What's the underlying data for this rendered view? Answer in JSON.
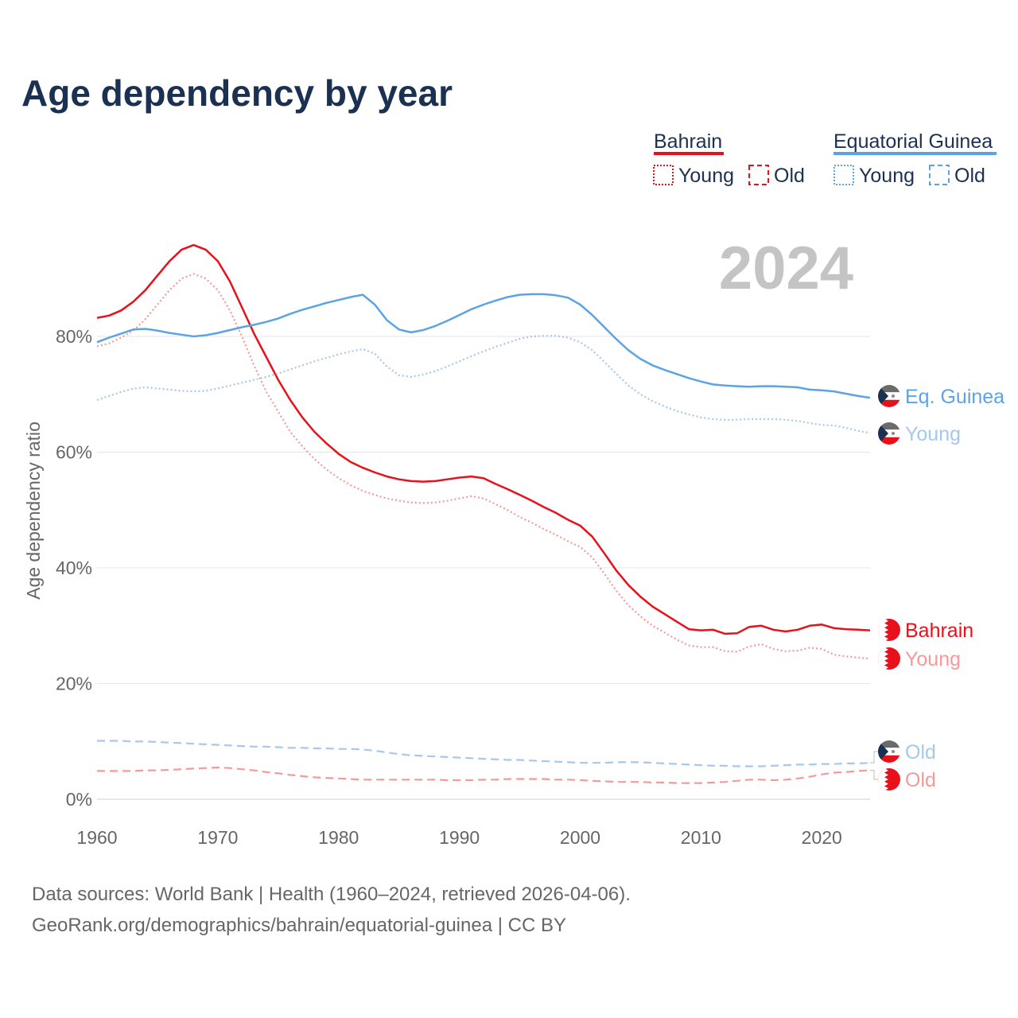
{
  "chart_data": {
    "type": "line",
    "title": "Age dependency by year",
    "xlabel": "",
    "ylabel": "Age dependency ratio",
    "xlim": [
      1960,
      2024
    ],
    "ylim": [
      0,
      100
    ],
    "y_ticks": [
      "0%",
      "20%",
      "40%",
      "60%",
      "80%"
    ],
    "y_tick_values": [
      0,
      20,
      40,
      60,
      80
    ],
    "x_ticks": [
      "1960",
      "1970",
      "1980",
      "1990",
      "2000",
      "2010",
      "2020"
    ],
    "x_tick_values": [
      1960,
      1970,
      1980,
      1990,
      2000,
      2010,
      2020
    ],
    "grid": true,
    "year_watermark": "2024",
    "x_start": 1960,
    "series": [
      {
        "name": "Bahrain",
        "label": "Bahrain",
        "style": "solid",
        "color": "#e8101a",
        "values": [
          83.2,
          83.6,
          84.5,
          86.0,
          88.0,
          90.5,
          93.0,
          95.0,
          95.8,
          95.0,
          93.0,
          89.5,
          85.0,
          80.5,
          76.5,
          72.5,
          69.0,
          66.0,
          63.5,
          61.5,
          59.7,
          58.3,
          57.3,
          56.5,
          55.8,
          55.3,
          55.0,
          54.9,
          55.0,
          55.3,
          55.6,
          55.8,
          55.5,
          54.5,
          53.6,
          52.6,
          51.6,
          50.5,
          49.5,
          48.3,
          47.3,
          45.4,
          42.5,
          39.5,
          37.0,
          35.0,
          33.3,
          32.0,
          30.7,
          29.4,
          29.2,
          29.3,
          28.6,
          28.7,
          29.8,
          30.0,
          29.3,
          29.0,
          29.3,
          30.0,
          30.2,
          29.6,
          29.4,
          29.3,
          29.2
        ]
      },
      {
        "name": "Bahrain Young",
        "label": "Young",
        "style": "dotted",
        "color": "#f59999",
        "values": [
          78.3,
          78.8,
          79.8,
          81.0,
          83.0,
          85.5,
          88.0,
          90.0,
          90.8,
          90.0,
          88.0,
          84.5,
          80.0,
          75.0,
          70.5,
          67.0,
          63.5,
          61.0,
          58.8,
          57.0,
          55.5,
          54.3,
          53.3,
          52.6,
          52.0,
          51.6,
          51.3,
          51.2,
          51.3,
          51.6,
          52.0,
          52.4,
          52.0,
          51.0,
          50.0,
          48.8,
          47.8,
          46.7,
          45.7,
          44.6,
          43.6,
          41.8,
          39.0,
          36.0,
          33.5,
          31.6,
          30.0,
          28.8,
          27.6,
          26.6,
          26.3,
          26.3,
          25.6,
          25.5,
          26.4,
          26.8,
          26.0,
          25.6,
          25.7,
          26.2,
          26.0,
          25.0,
          24.7,
          24.5,
          24.3
        ]
      },
      {
        "name": "Bahrain Old",
        "label": "Old",
        "style": "dashed",
        "color": "#f59999",
        "values": [
          4.9,
          4.9,
          4.9,
          4.9,
          5.0,
          5.0,
          5.1,
          5.2,
          5.3,
          5.4,
          5.5,
          5.4,
          5.2,
          5.0,
          4.7,
          4.5,
          4.2,
          4.0,
          3.8,
          3.7,
          3.6,
          3.5,
          3.4,
          3.4,
          3.4,
          3.4,
          3.4,
          3.4,
          3.4,
          3.3,
          3.3,
          3.3,
          3.4,
          3.4,
          3.5,
          3.5,
          3.5,
          3.5,
          3.4,
          3.4,
          3.3,
          3.2,
          3.1,
          3.0,
          3.0,
          3.0,
          2.9,
          2.9,
          2.8,
          2.8,
          2.8,
          2.9,
          3.0,
          3.2,
          3.4,
          3.4,
          3.3,
          3.4,
          3.6,
          3.9,
          4.3,
          4.6,
          4.7,
          4.9,
          5.0
        ]
      },
      {
        "name": "Equatorial Guinea",
        "label": "Eq. Guinea",
        "style": "solid",
        "color": "#5ba3e6",
        "values": [
          79.0,
          79.8,
          80.5,
          81.2,
          81.3,
          81.0,
          80.6,
          80.3,
          80.0,
          80.2,
          80.6,
          81.1,
          81.6,
          82.0,
          82.5,
          83.1,
          83.9,
          84.6,
          85.2,
          85.8,
          86.3,
          86.8,
          87.2,
          85.5,
          82.8,
          81.2,
          80.7,
          81.1,
          81.8,
          82.7,
          83.7,
          84.7,
          85.5,
          86.2,
          86.8,
          87.2,
          87.3,
          87.3,
          87.1,
          86.7,
          85.5,
          83.7,
          81.6,
          79.5,
          77.6,
          76.1,
          75.0,
          74.2,
          73.5,
          72.8,
          72.2,
          71.7,
          71.5,
          71.4,
          71.3,
          71.4,
          71.4,
          71.3,
          71.2,
          70.8,
          70.7,
          70.5,
          70.1,
          69.7,
          69.4
        ]
      },
      {
        "name": "Equatorial Guinea Young",
        "label": "Young",
        "style": "dotted",
        "color": "#a6c8ec",
        "values": [
          69.0,
          69.7,
          70.4,
          71.0,
          71.2,
          71.0,
          70.8,
          70.6,
          70.5,
          70.6,
          71.0,
          71.5,
          72.0,
          72.5,
          73.0,
          73.6,
          74.3,
          75.0,
          75.7,
          76.3,
          76.9,
          77.4,
          77.8,
          77.0,
          74.8,
          73.3,
          73.0,
          73.4,
          74.0,
          74.8,
          75.7,
          76.6,
          77.4,
          78.2,
          78.9,
          79.6,
          80.0,
          80.1,
          80.1,
          79.8,
          79.0,
          77.6,
          75.6,
          73.5,
          71.5,
          70.0,
          68.8,
          67.9,
          67.1,
          66.5,
          66.0,
          65.7,
          65.6,
          65.6,
          65.7,
          65.7,
          65.7,
          65.6,
          65.4,
          65.0,
          64.7,
          64.6,
          64.2,
          63.7,
          63.3
        ]
      },
      {
        "name": "Equatorial Guinea Old",
        "label": "Old",
        "style": "dashed",
        "color": "#a6c8ec",
        "values": [
          10.1,
          10.1,
          10.1,
          10.0,
          10.0,
          9.9,
          9.8,
          9.7,
          9.6,
          9.5,
          9.4,
          9.3,
          9.2,
          9.1,
          9.1,
          9.0,
          8.9,
          8.9,
          8.8,
          8.8,
          8.7,
          8.7,
          8.6,
          8.4,
          8.1,
          7.8,
          7.6,
          7.5,
          7.4,
          7.3,
          7.2,
          7.1,
          7.0,
          6.9,
          6.8,
          6.8,
          6.7,
          6.6,
          6.5,
          6.4,
          6.3,
          6.3,
          6.3,
          6.4,
          6.4,
          6.4,
          6.3,
          6.2,
          6.1,
          6.0,
          5.9,
          5.8,
          5.8,
          5.7,
          5.7,
          5.7,
          5.8,
          5.9,
          6.0,
          6.0,
          6.1,
          6.1,
          6.2,
          6.2,
          6.3
        ]
      }
    ],
    "legend": {
      "placement": "top-right",
      "groups": [
        {
          "country": "Bahrain",
          "color": "#e8101a",
          "items": [
            "Young",
            "Old"
          ]
        },
        {
          "country": "Equatorial Guinea",
          "color": "#5ba3e6",
          "items": [
            "Young",
            "Old"
          ]
        }
      ]
    }
  },
  "footer": {
    "source": "Data sources: World Bank | Health (1960–2024, retrieved 2026-04-06).",
    "link": "GeoRank.org/demographics/bahrain/equatorial-guinea | CC BY"
  }
}
